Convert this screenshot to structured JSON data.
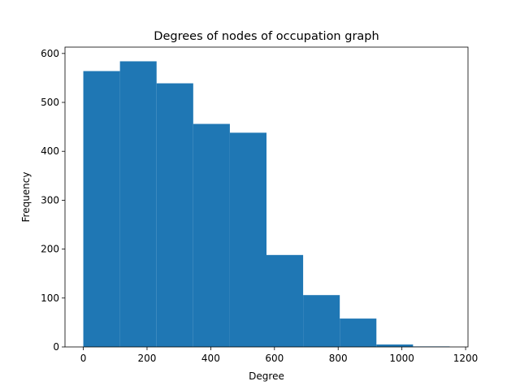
{
  "chart_data": {
    "type": "bar",
    "title": "Degrees of nodes of occupation graph",
    "xlabel": "Degree",
    "ylabel": "Frequency",
    "bar_color": "#1f77b4",
    "bins": [
      {
        "x0": 0,
        "x1": 115,
        "value": 564
      },
      {
        "x0": 115,
        "x1": 230,
        "value": 584
      },
      {
        "x0": 230,
        "x1": 345,
        "value": 539
      },
      {
        "x0": 345,
        "x1": 460,
        "value": 456
      },
      {
        "x0": 460,
        "x1": 575,
        "value": 438
      },
      {
        "x0": 575,
        "x1": 690,
        "value": 188
      },
      {
        "x0": 690,
        "x1": 805,
        "value": 106
      },
      {
        "x0": 805,
        "x1": 920,
        "value": 58
      },
      {
        "x0": 920,
        "x1": 1035,
        "value": 5
      },
      {
        "x0": 1035,
        "x1": 1150,
        "value": 1
      }
    ],
    "xlim": [
      -57.5,
      1207.5
    ],
    "ylim": [
      0,
      613
    ],
    "xticks": [
      0,
      200,
      400,
      600,
      800,
      1000,
      1200
    ],
    "yticks": [
      0,
      100,
      200,
      300,
      400,
      500,
      600
    ],
    "grid": false
  }
}
